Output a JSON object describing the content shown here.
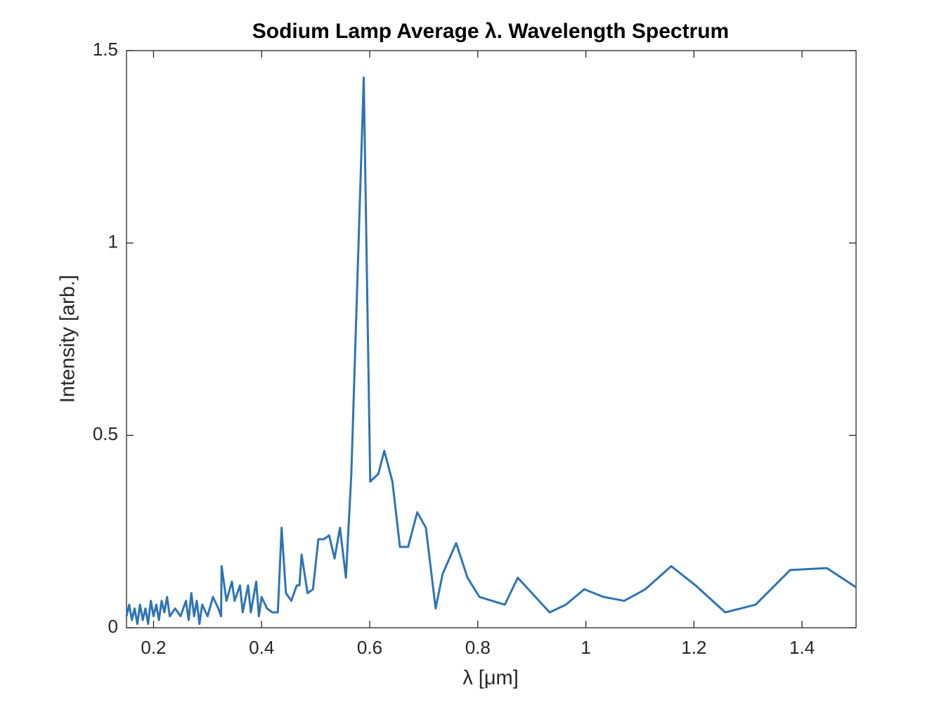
{
  "chart_data": {
    "type": "line",
    "title": "Sodium Lamp Average λ. Wavelength Spectrum",
    "x_label": "λ [μm]",
    "y_label": "Intensity [arb.]",
    "color": "#2e74b5",
    "x": [
      0.15,
      0.155,
      0.16,
      0.165,
      0.17,
      0.175,
      0.18,
      0.185,
      0.19,
      0.195,
      0.2,
      0.205,
      0.21,
      0.215,
      0.22,
      0.225,
      0.23,
      0.24,
      0.25,
      0.26,
      0.265,
      0.27,
      0.275,
      0.28,
      0.285,
      0.29,
      0.3,
      0.31,
      0.32,
      0.325,
      0.326,
      0.335,
      0.345,
      0.35,
      0.36,
      0.365,
      0.375,
      0.38,
      0.39,
      0.395,
      0.4,
      0.41,
      0.42,
      0.43,
      0.437,
      0.445,
      0.455,
      0.465,
      0.47,
      0.474,
      0.485,
      0.495,
      0.505,
      0.515,
      0.525,
      0.535,
      0.545,
      0.556,
      0.566,
      0.589,
      0.601,
      0.616,
      0.627,
      0.642,
      0.656,
      0.671,
      0.688,
      0.704,
      0.722,
      0.735,
      0.76,
      0.781,
      0.803,
      0.85,
      0.874,
      0.933,
      0.963,
      0.997,
      1.033,
      1.071,
      1.11,
      1.158,
      1.203,
      1.258,
      1.314,
      1.378,
      1.446,
      1.5
    ],
    "values": [
      0.03,
      0.06,
      0.02,
      0.05,
      0.01,
      0.06,
      0.02,
      0.05,
      0.01,
      0.07,
      0.03,
      0.06,
      0.02,
      0.07,
      0.04,
      0.08,
      0.03,
      0.05,
      0.03,
      0.07,
      0.02,
      0.09,
      0.03,
      0.07,
      0.01,
      0.06,
      0.03,
      0.08,
      0.05,
      0.03,
      0.16,
      0.07,
      0.12,
      0.07,
      0.11,
      0.04,
      0.11,
      0.04,
      0.12,
      0.03,
      0.08,
      0.05,
      0.04,
      0.04,
      0.26,
      0.09,
      0.07,
      0.11,
      0.11,
      0.19,
      0.09,
      0.1,
      0.23,
      0.23,
      0.24,
      0.18,
      0.26,
      0.13,
      0.4,
      1.43,
      0.38,
      0.4,
      0.46,
      0.38,
      0.21,
      0.21,
      0.3,
      0.26,
      0.05,
      0.14,
      0.22,
      0.13,
      0.08,
      0.06,
      0.13,
      0.04,
      0.06,
      0.1,
      0.08,
      0.07,
      0.1,
      0.16,
      0.11,
      0.04,
      0.06,
      0.15,
      0.155,
      0.105
    ],
    "xlim": [
      0.15,
      1.5
    ],
    "ylim": [
      0,
      1.5
    ],
    "xticks": [
      0.2,
      0.4,
      0.6,
      0.8,
      1,
      1.2,
      1.4
    ],
    "yticks": [
      0,
      0.5,
      1,
      1.5
    ],
    "grid": false
  }
}
